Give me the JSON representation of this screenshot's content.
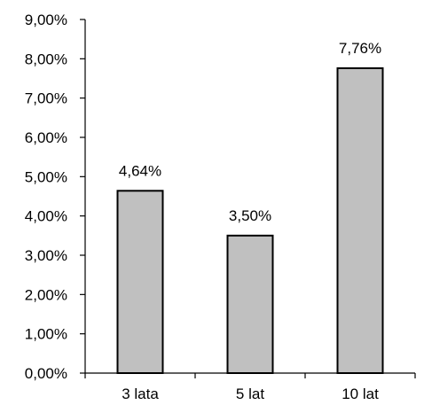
{
  "chart_data": {
    "type": "bar",
    "title": "",
    "xlabel": "",
    "ylabel": "",
    "categories": [
      "3 lata",
      "5 lat",
      "10 lat"
    ],
    "values": [
      4.64,
      3.5,
      7.76
    ],
    "value_labels": [
      "4,64%",
      "3,50%",
      "7,76%"
    ],
    "ylim": [
      0,
      9
    ],
    "y_ticks": [
      0,
      1,
      2,
      3,
      4,
      5,
      6,
      7,
      8,
      9
    ],
    "y_tick_labels": [
      "0,00%",
      "1,00%",
      "2,00%",
      "3,00%",
      "4,00%",
      "5,00%",
      "6,00%",
      "7,00%",
      "8,00%",
      "9,00%"
    ],
    "grid": false,
    "legend": "none",
    "colors": {
      "bar_fill": "#c0c0c0",
      "bar_stroke": "#000000",
      "axis": "#000000"
    }
  }
}
